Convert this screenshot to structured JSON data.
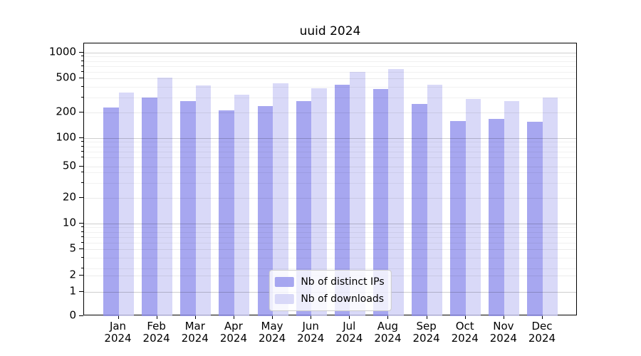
{
  "chart_data": {
    "type": "bar",
    "title": "uuid 2024",
    "categories": [
      "Jan",
      "Feb",
      "Mar",
      "Apr",
      "May",
      "Jun",
      "Jul",
      "Aug",
      "Sep",
      "Oct",
      "Nov",
      "Dec"
    ],
    "x_tick_second_line": "2024",
    "series": [
      {
        "name": "Nb of distinct IPs",
        "color": "#9191ec",
        "values": [
          230,
          300,
          270,
          210,
          236,
          270,
          425,
          375,
          250,
          160,
          168,
          155
        ]
      },
      {
        "name": "Nb of downloads",
        "color": "#cfcff6",
        "values": [
          340,
          510,
          410,
          320,
          440,
          380,
          600,
          645,
          425,
          285,
          270,
          300
        ]
      }
    ],
    "xlabel": "",
    "ylabel": "",
    "yscale": "symlog",
    "ylim": [
      0,
      1000
    ],
    "y_ticks": [
      0,
      1,
      2,
      5,
      10,
      20,
      50,
      100,
      200,
      500,
      1000
    ],
    "grid": true,
    "legend_position": "lower center"
  }
}
